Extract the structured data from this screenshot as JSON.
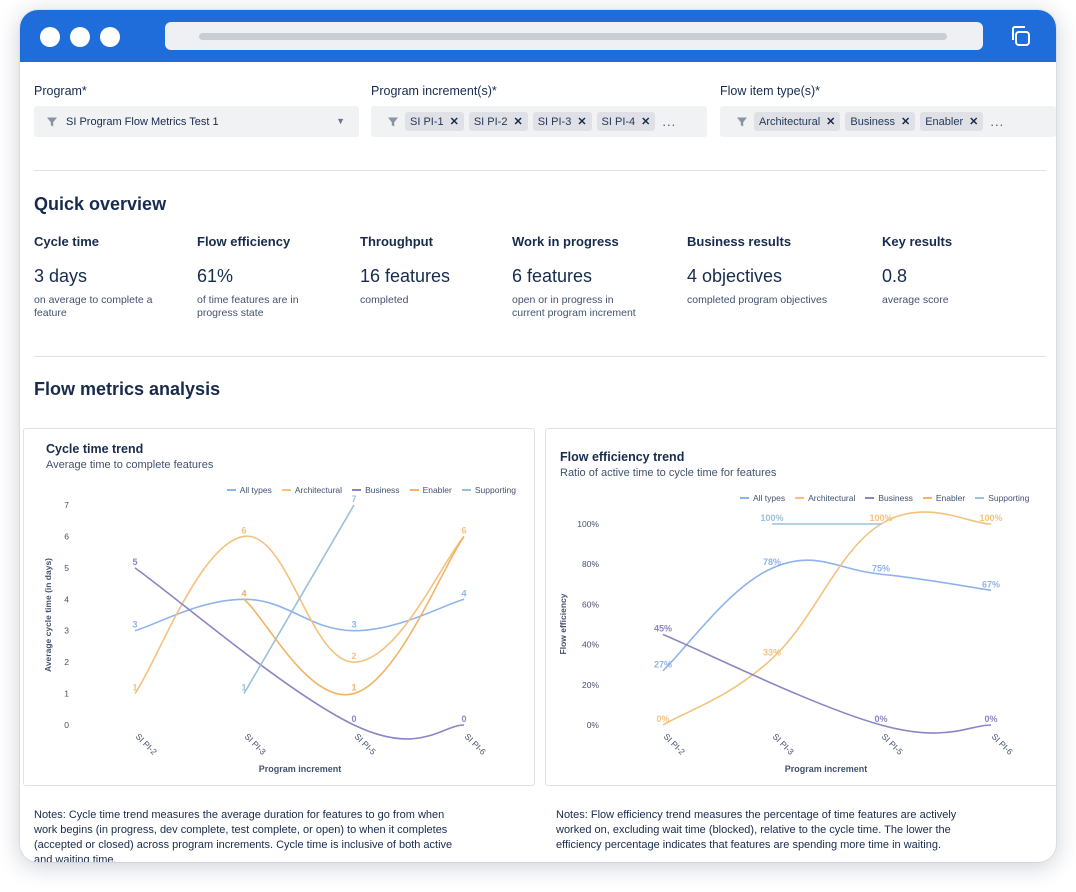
{
  "filters": {
    "program": {
      "label": "Program*",
      "value": "SI Program Flow Metrics Test 1"
    },
    "increments": {
      "label": "Program increment(s)*",
      "chips": [
        "SI PI-1",
        "SI PI-2",
        "SI PI-3",
        "SI PI-4"
      ],
      "more": "..."
    },
    "flow_types": {
      "label": "Flow item type(s)*",
      "chips": [
        "Architectural",
        "Business",
        "Enabler"
      ],
      "more": "..."
    }
  },
  "overview": {
    "title": "Quick overview",
    "metrics": [
      {
        "label": "Cycle time",
        "value": "3 days",
        "desc1": "on average to complete a",
        "desc2": "feature"
      },
      {
        "label": "Flow efficiency",
        "value": "61%",
        "desc1": "of time features are in",
        "desc2": "progress state"
      },
      {
        "label": "Throughput",
        "value": "16 features",
        "desc1": "completed",
        "desc2": ""
      },
      {
        "label": "Work in progress",
        "value": "6 features",
        "desc1": "open or in progress in",
        "desc2": "current program increment"
      },
      {
        "label": "Business results",
        "value": "4 objectives",
        "desc1": "completed program objectives",
        "desc2": ""
      },
      {
        "label": "Key results",
        "value": "0.8",
        "desc1": "average score",
        "desc2": ""
      }
    ]
  },
  "analysis": {
    "title": "Flow metrics analysis"
  },
  "legend": [
    "All types",
    "Architectural",
    "Business",
    "Enabler",
    "Supporting"
  ],
  "colors": {
    "all_types": "#8fb3ec",
    "architectural": "#f3c27e",
    "business": "#8a86c4",
    "enabler": "#f0b464",
    "supporting": "#9cc0d9",
    "accent": "#1f6ddb"
  },
  "chart_data": [
    {
      "type": "line",
      "title": "Cycle time trend",
      "subtitle": "Average time to complete features",
      "xlabel": "Program increment",
      "ylabel": "Average cycle time (in days)",
      "categories": [
        "SI PI-2",
        "SI PI-3",
        "SI PI-5",
        "SI PI-6"
      ],
      "yticks": [
        "0",
        "1",
        "2",
        "3",
        "4",
        "5",
        "6",
        "7"
      ],
      "ylim": [
        0,
        7
      ],
      "legend_position": "top-right",
      "series": [
        {
          "name": "All types",
          "values": [
            3,
            4,
            3,
            4
          ],
          "labels": [
            "3",
            "4",
            "3",
            "4"
          ]
        },
        {
          "name": "Architectural",
          "values": [
            1,
            6,
            2,
            6
          ],
          "labels": [
            "1",
            "6",
            "2",
            "6"
          ]
        },
        {
          "name": "Business",
          "values": [
            5,
            null,
            0,
            0
          ],
          "labels": [
            "5",
            "",
            "0",
            "0"
          ]
        },
        {
          "name": "Enabler",
          "values": [
            null,
            4,
            1,
            6
          ],
          "labels": [
            "",
            "4",
            "1",
            ""
          ]
        },
        {
          "name": "Supporting",
          "values": [
            null,
            1,
            7,
            null
          ],
          "labels": [
            "",
            "1",
            "7",
            ""
          ]
        }
      ]
    },
    {
      "type": "line",
      "title": "Flow efficiency trend",
      "subtitle": "Ratio of active time to cycle time for features",
      "xlabel": "Program increment",
      "ylabel": "Flow efficiency",
      "categories": [
        "SI PI-2",
        "SI PI-3",
        "SI PI-5",
        "SI PI-6"
      ],
      "yticks": [
        "0%",
        "20%",
        "40%",
        "60%",
        "80%",
        "100%"
      ],
      "ylim": [
        0,
        100
      ],
      "legend_position": "top-right",
      "series": [
        {
          "name": "All types",
          "values": [
            27,
            78,
            75,
            67
          ],
          "labels": [
            "27%",
            "78%",
            "75%",
            "67%"
          ]
        },
        {
          "name": "Architectural",
          "values": [
            0,
            33,
            100,
            100
          ],
          "labels": [
            "0%",
            "33%",
            "100%",
            "100%"
          ]
        },
        {
          "name": "Business",
          "values": [
            45,
            null,
            0,
            0
          ],
          "labels": [
            "45%",
            "",
            "0%",
            "0%"
          ]
        },
        {
          "name": "Enabler",
          "values": [
            null,
            null,
            null,
            null
          ],
          "labels": [
            "",
            "",
            "",
            ""
          ]
        },
        {
          "name": "Supporting",
          "values": [
            null,
            100,
            100,
            null
          ],
          "labels": [
            "",
            "100%",
            "",
            ""
          ]
        }
      ]
    }
  ],
  "notes": {
    "left": [
      "Notes: Cycle time trend measures the average duration for features to go from when",
      "work begins (in progress, dev complete, test complete, or open) to when it completes",
      "(accepted or closed) across program increments. Cycle time is inclusive of both active",
      "and waiting time."
    ],
    "right": [
      "Notes: Flow efficiency trend measures the percentage of time features are actively",
      "worked on, excluding wait time (blocked), relative to the cycle time. The lower the",
      "efficiency percentage indicates that features are spending more time in waiting."
    ]
  }
}
